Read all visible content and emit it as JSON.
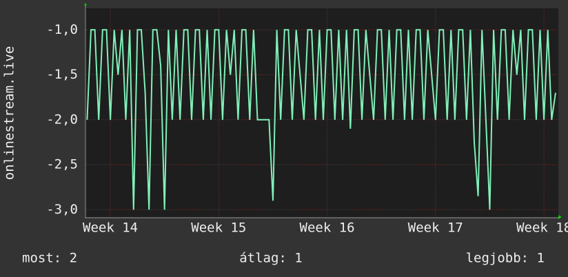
{
  "chart_data": {
    "type": "line",
    "y_label": "onlinestream.live",
    "x": [
      5.5,
      5.75,
      6,
      6.25,
      6.5,
      6.75,
      7,
      7.25,
      7.5,
      7.75,
      8,
      8.25,
      8.5,
      8.75,
      9,
      9.25,
      9.5,
      9.75,
      10,
      10.25,
      10.5,
      10.75,
      11,
      11.25,
      11.5,
      11.75,
      12,
      12.25,
      12.5,
      12.75,
      13,
      13.25,
      13.5,
      13.75,
      14,
      14.25,
      14.5,
      14.75,
      15,
      15.25,
      15.5,
      15.75,
      16,
      16.25,
      16.5,
      16.75,
      17,
      17.25,
      17.5,
      17.75,
      18,
      18.25,
      18.5,
      18.75,
      19,
      19.25,
      19.5,
      19.75,
      20,
      20.25,
      20.5,
      20.75,
      21,
      21.25,
      21.5,
      21.75,
      22,
      22.25,
      22.5,
      22.75,
      23,
      23.25,
      23.5,
      23.75,
      24,
      24.25,
      24.5,
      24.75,
      25,
      25.25,
      25.5,
      25.75,
      26,
      26.25,
      26.5,
      26.75,
      27,
      27.25,
      27.5,
      27.75,
      28,
      28.25,
      28.5,
      28.75,
      29,
      29.25,
      29.5,
      29.75,
      30,
      30.25,
      30.5,
      30.75,
      31,
      31.25,
      31.5,
      31.75,
      32,
      32.25,
      32.5,
      32.75,
      33,
      33.25,
      33.5,
      33.75,
      34,
      34.25,
      34.5,
      34.75,
      35,
      35.25,
      35.5,
      35.75
    ],
    "series": [
      {
        "name": "onlinestream.live",
        "color": "#80f0b8",
        "values": [
          -2,
          -1,
          -1,
          -2,
          -1,
          -1,
          -2,
          -1,
          -1.5,
          -1,
          -2,
          -1,
          -3,
          -1,
          -1,
          -1.7,
          -3,
          -1,
          -1,
          -1.4,
          -3,
          -1,
          -2,
          -1,
          -2,
          -1,
          -1,
          -2,
          -1,
          -1,
          -2,
          -1,
          -2,
          -1,
          -1,
          -2,
          -1,
          -1.5,
          -1,
          -2,
          -1,
          -1,
          -2,
          -1,
          -2,
          -2,
          -2,
          -2,
          -2.9,
          -1,
          -2,
          -1,
          -1,
          -2,
          -1,
          -1.5,
          -2,
          -1,
          -1,
          -2,
          -1,
          -2,
          -1,
          -1,
          -2,
          -1,
          -2,
          -1,
          -2.1,
          -1,
          -1,
          -2,
          -1,
          -1.5,
          -2,
          -1,
          -1,
          -2,
          -1,
          -2,
          -1,
          -1,
          -2,
          -1,
          -2,
          -1,
          -1,
          -2,
          -1,
          -1.5,
          -2,
          -1,
          -1,
          -2,
          -1,
          -2,
          -1,
          -1,
          -2,
          -1,
          -2.25,
          -2.85,
          -1,
          -2,
          -3,
          -1,
          -2,
          -1,
          -1,
          -2,
          -1,
          -1.5,
          -1,
          -2,
          -1,
          -1,
          -2,
          -1,
          -2,
          -1,
          -2,
          -1.7
        ]
      }
    ],
    "xlim": [
      5.35,
      35.93
    ],
    "xticks": [
      {
        "value": 7,
        "label": "Week 14"
      },
      {
        "value": 14,
        "label": "Week 15"
      },
      {
        "value": 21,
        "label": "Week 16"
      },
      {
        "value": 28,
        "label": "Week 17"
      },
      {
        "value": 35,
        "label": "Week 18"
      }
    ],
    "ylim": [
      -3.09,
      -0.76
    ],
    "yticks": [
      {
        "value": -3,
        "label": "-3,0"
      },
      {
        "value": -2.5,
        "label": "-2,5"
      },
      {
        "value": -2,
        "label": "-2,0"
      },
      {
        "value": -1.5,
        "label": "-1,5"
      },
      {
        "value": -1,
        "label": "-1,0"
      }
    ],
    "grid": true,
    "footer_stats": [
      "most: 2",
      "átlag: 1",
      "legjobb: 1"
    ]
  }
}
